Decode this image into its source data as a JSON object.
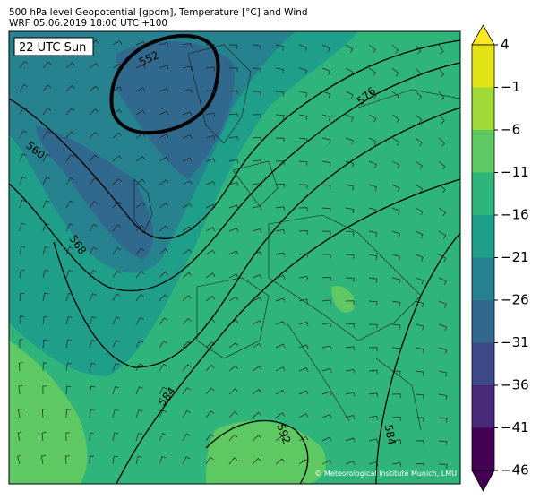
{
  "header": {
    "title": "500 hPa level Geopotential [gpdm], Temperature [°C] and Wind",
    "subtitle": "WRF 05.06.2019 18:00 UTC +100"
  },
  "time_label": "22 UTC Sun",
  "contour_labels": [
    "552",
    "560",
    "568",
    "576",
    "584",
    "592",
    "584"
  ],
  "colorbar": {
    "ticks": [
      "4",
      "−1",
      "−6",
      "−11",
      "−16",
      "−21",
      "−26",
      "−31",
      "−36",
      "−41",
      "−46"
    ]
  },
  "credit": "© Meteorological Institute Munich, LMU"
}
